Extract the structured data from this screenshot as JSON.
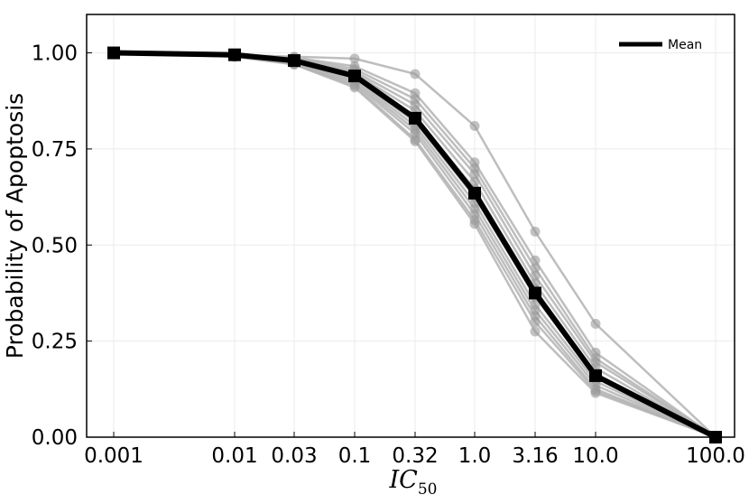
{
  "chart_data": {
    "type": "line",
    "title": "",
    "xlabel": "IC",
    "xlabel_subscript": "50",
    "ylabel": "Probability of Apoptosis",
    "x_categories": [
      "0.001",
      "0.01",
      "0.03",
      "0.1",
      "0.32",
      "1.0",
      "3.16",
      "10.0",
      "100.0"
    ],
    "x_scale": "log",
    "x_values": [
      0.001,
      0.01,
      0.03,
      0.1,
      0.32,
      1.0,
      3.16,
      10.0,
      100.0
    ],
    "yticks": [
      "0.00",
      "0.25",
      "0.50",
      "0.75",
      "1.00"
    ],
    "ylim": [
      0,
      1.1
    ],
    "grid": true,
    "legend": {
      "position": "top-right",
      "entries": [
        "Mean"
      ]
    },
    "colors": {
      "mean": "#000000",
      "sample_line": "#b3b3b3",
      "sample_marker": "#999999",
      "grid": "#ebebeb"
    },
    "series": [
      {
        "name": "Mean",
        "marker": "square",
        "values": [
          1.0,
          0.995,
          0.98,
          0.94,
          0.83,
          0.635,
          0.375,
          0.16,
          0.0
        ]
      }
    ],
    "sample_series": [
      [
        1.0,
        0.995,
        0.99,
        0.985,
        0.945,
        0.81,
        0.535,
        0.295,
        0.0
      ],
      [
        1.0,
        0.995,
        0.988,
        0.965,
        0.895,
        0.715,
        0.46,
        0.22,
        0.0
      ],
      [
        1.0,
        0.995,
        0.986,
        0.958,
        0.88,
        0.7,
        0.44,
        0.205,
        0.0
      ],
      [
        1.0,
        0.995,
        0.984,
        0.952,
        0.865,
        0.685,
        0.42,
        0.195,
        0.0
      ],
      [
        1.0,
        0.995,
        0.982,
        0.947,
        0.85,
        0.665,
        0.4,
        0.18,
        0.0
      ],
      [
        1.0,
        0.995,
        0.98,
        0.94,
        0.835,
        0.645,
        0.385,
        0.165,
        0.0
      ],
      [
        1.0,
        0.993,
        0.978,
        0.935,
        0.82,
        0.625,
        0.365,
        0.155,
        0.0
      ],
      [
        1.0,
        0.993,
        0.976,
        0.93,
        0.81,
        0.61,
        0.345,
        0.145,
        0.0
      ],
      [
        1.0,
        0.992,
        0.974,
        0.925,
        0.8,
        0.595,
        0.33,
        0.135,
        0.0
      ],
      [
        1.0,
        0.991,
        0.972,
        0.92,
        0.79,
        0.58,
        0.315,
        0.125,
        0.0
      ],
      [
        1.0,
        0.99,
        0.97,
        0.915,
        0.775,
        0.565,
        0.3,
        0.12,
        0.0
      ],
      [
        1.0,
        0.99,
        0.97,
        0.91,
        0.77,
        0.555,
        0.275,
        0.115,
        0.0
      ]
    ]
  }
}
